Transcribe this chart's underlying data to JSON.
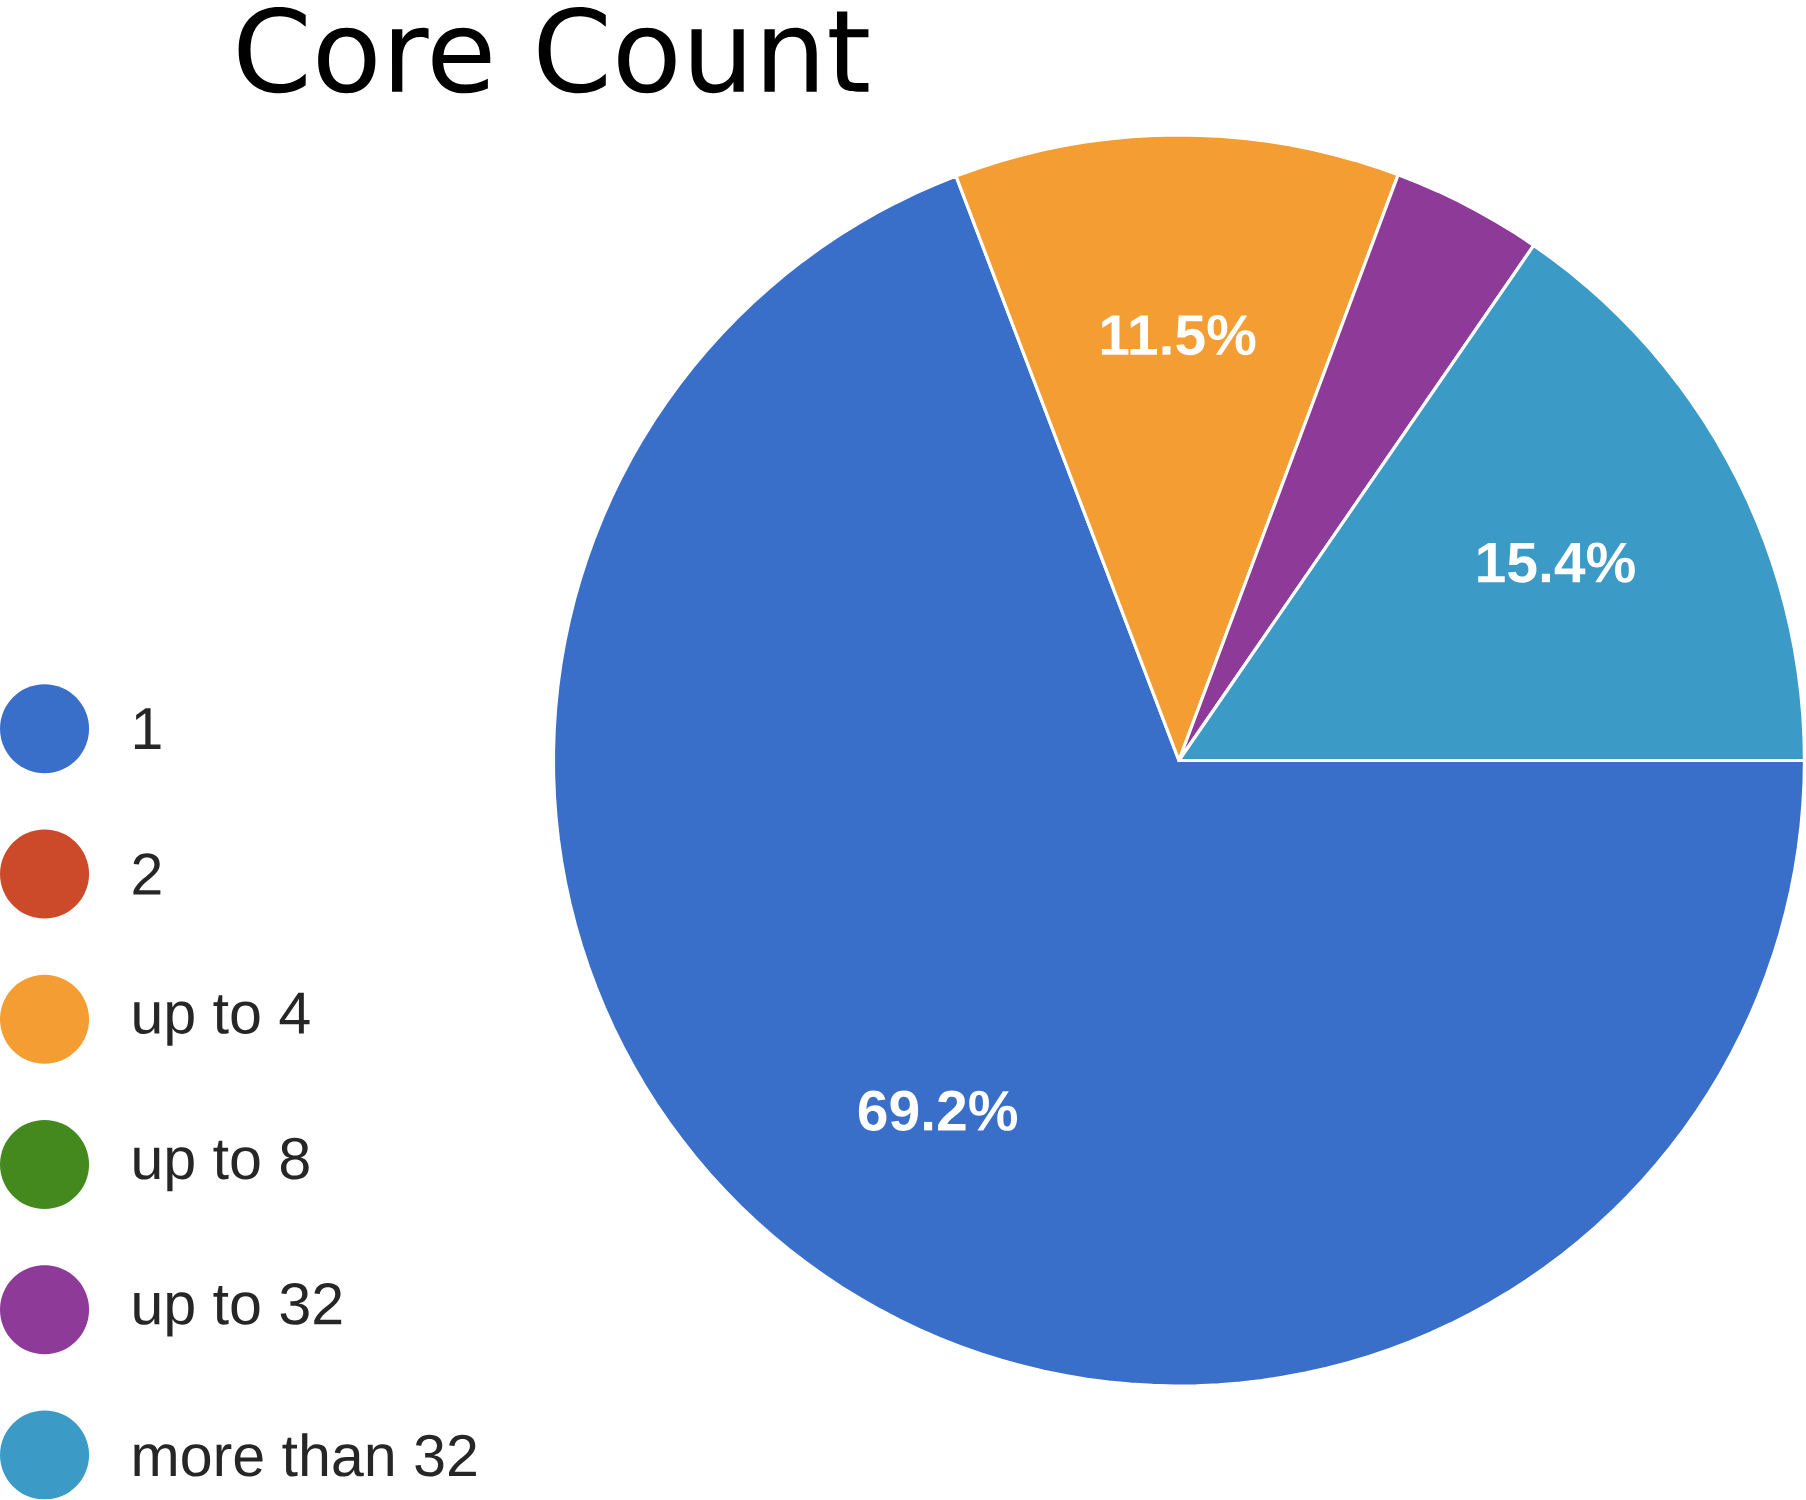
{
  "chart_data": {
    "type": "pie",
    "title": "Core Count",
    "categories": [
      "1",
      "2",
      "up to 4",
      "up to 8",
      "up to 32",
      "more than 32"
    ],
    "values": [
      69.2,
      0,
      11.5,
      0,
      3.9,
      15.4
    ],
    "colors": [
      "#3a6fc9",
      "#cc4a2a",
      "#f39d33",
      "#43891e",
      "#8d3a98",
      "#3c9ac6"
    ],
    "value_labels": [
      "69.2%",
      null,
      "11.5%",
      null,
      null,
      "15.4%"
    ],
    "legend": "left"
  }
}
